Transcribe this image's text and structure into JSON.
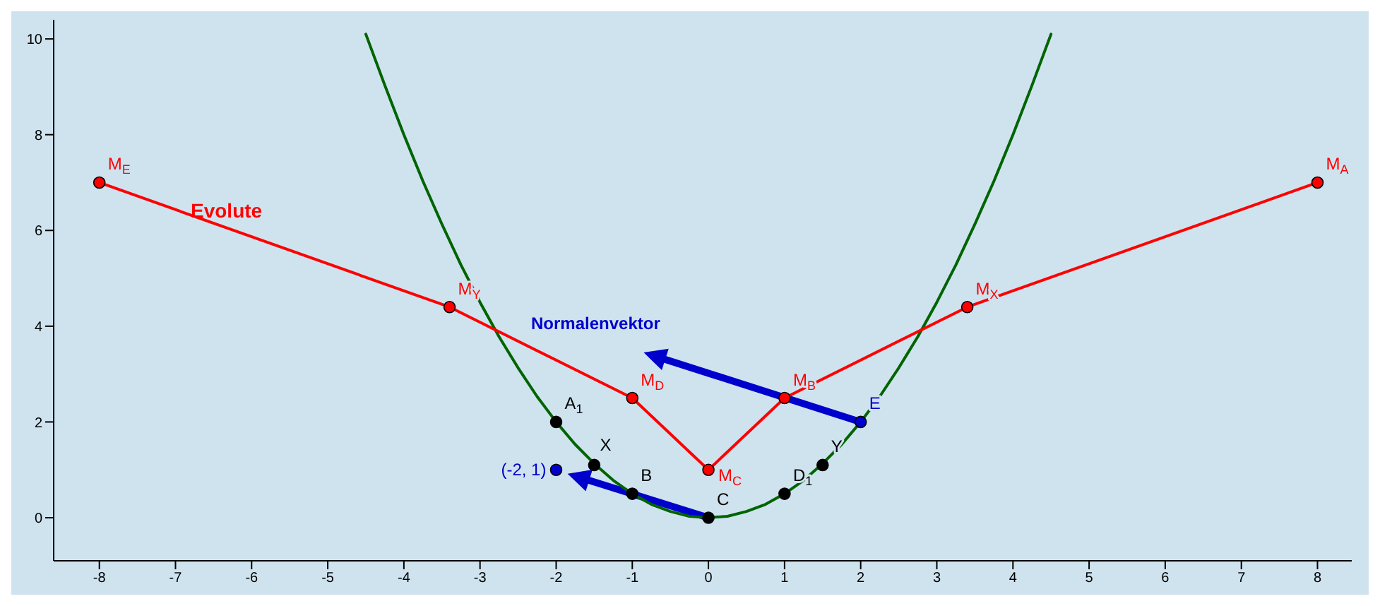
{
  "chart_data": {
    "type": "line",
    "xlim": [
      -8.6,
      8.45
    ],
    "ylim": [
      -0.9,
      10.4
    ],
    "xticks": [
      -8,
      -7,
      -6,
      -5,
      -4,
      -3,
      -2,
      -1,
      0,
      1,
      2,
      3,
      4,
      5,
      6,
      7,
      8
    ],
    "yticks": [
      0,
      2,
      4,
      6,
      8,
      10
    ],
    "series": [
      {
        "color": "#006400",
        "marker": "none",
        "x": [
          -4.5,
          -4.25,
          -4,
          -3.75,
          -3.5,
          -3.25,
          -3,
          -2.75,
          -2.5,
          -2.25,
          -2,
          -1.75,
          -1.5,
          -1.25,
          -1,
          -0.75,
          -0.5,
          -0.25,
          0,
          0.25,
          0.5,
          0.75,
          1,
          1.25,
          1.5,
          1.75,
          2,
          2.25,
          2.5,
          2.75,
          3,
          3.25,
          3.5,
          3.75,
          4,
          4.25,
          4.5
        ],
        "values": [
          10.1,
          9.03,
          8,
          7.03,
          6.13,
          5.28,
          4.5,
          3.78,
          3.13,
          2.53,
          2,
          1.53,
          1.13,
          0.78,
          0.5,
          0.28,
          0.13,
          0.03,
          0,
          0.03,
          0.13,
          0.28,
          0.5,
          0.78,
          1.13,
          1.53,
          2,
          2.53,
          3.13,
          3.78,
          4.5,
          5.28,
          6.13,
          7.03,
          8,
          9.03,
          10.1
        ]
      },
      {
        "color": "#ff0000",
        "marker": "none",
        "x": [
          -8,
          -3.4,
          -1,
          0,
          1,
          3.4,
          8
        ],
        "values": [
          7,
          4.4,
          2.5,
          1,
          2.5,
          4.4,
          7
        ]
      },
      {
        "type": "scatter",
        "color": "#000000",
        "marker": "circle",
        "x": [
          -2,
          -1.5,
          -1,
          0,
          1,
          1.5
        ],
        "values": [
          2,
          1.1,
          0.5,
          0,
          0.5,
          1.1
        ]
      },
      {
        "type": "scatter",
        "color": "#ff0000",
        "marker": "circle",
        "x": [
          -8,
          -3.4,
          -1,
          0,
          1,
          3.4,
          8
        ],
        "values": [
          7,
          4.4,
          2.5,
          1,
          2.5,
          4.4,
          7
        ]
      },
      {
        "type": "scatter",
        "color": "#0000cc",
        "marker": "circle",
        "x": [
          2,
          -2
        ],
        "values": [
          2,
          1
        ]
      }
    ],
    "annotations": [
      {
        "text": "M$_{E}$",
        "x": -8,
        "y": 7
      },
      {
        "text": "M$_{Y}$",
        "x": -3.4,
        "y": 4.4
      },
      {
        "text": "M$_{D}$",
        "x": -1,
        "y": 2.5
      },
      {
        "text": "M$_{C}$",
        "x": 0,
        "y": 1
      },
      {
        "text": "M$_{B}$",
        "x": 1,
        "y": 2.5
      },
      {
        "text": "M$_{X}$",
        "x": 3.4,
        "y": 4.4
      },
      {
        "text": "M$_{A}$",
        "x": 8,
        "y": 7
      },
      {
        "text": "A$_{1}$",
        "x": -2,
        "y": 2
      },
      {
        "text": "X",
        "x": -1.5,
        "y": 1.1
      },
      {
        "text": "B",
        "x": -1,
        "y": 0.5
      },
      {
        "text": "C",
        "x": 0,
        "y": 0
      },
      {
        "text": "D$_{1}$",
        "x": 1,
        "y": 0.5
      },
      {
        "text": "Y",
        "x": 1.5,
        "y": 1.1
      },
      {
        "text": "E",
        "x": 2,
        "y": 2
      },
      {
        "text": "(-2, 1)",
        "x": -2,
        "y": 1
      },
      "Evolute",
      "Normalenvektor"
    ]
  }
}
